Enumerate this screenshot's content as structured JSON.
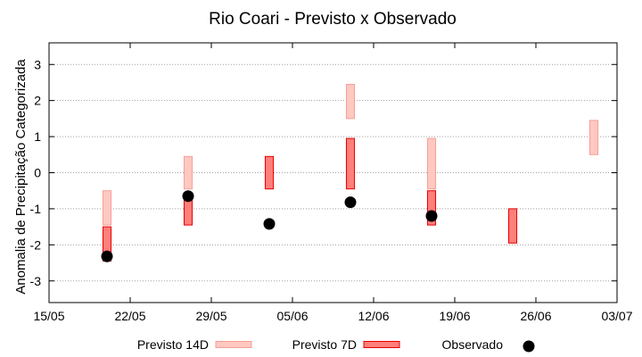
{
  "chart_data": {
    "type": "range",
    "title": "Rio Coari - Previsto x Observado",
    "ylabel": "Anomalia de Precipitação Categorizada",
    "xlabel": "",
    "ylim": [
      -3.6,
      3.6
    ],
    "yticks": [
      -3,
      -2,
      -1,
      0,
      1,
      2,
      3
    ],
    "xlim": [
      "2021-05-15",
      "2021-07-03"
    ],
    "xticks": [
      {
        "date": "2021-05-15",
        "label": "15/05"
      },
      {
        "date": "2021-05-22",
        "label": "22/05"
      },
      {
        "date": "2021-05-29",
        "label": "29/05"
      },
      {
        "date": "2021-06-05",
        "label": "05/06"
      },
      {
        "date": "2021-06-12",
        "label": "12/06"
      },
      {
        "date": "2021-06-19",
        "label": "19/06"
      },
      {
        "date": "2021-06-26",
        "label": "26/06"
      },
      {
        "date": "2021-07-03",
        "label": "03/07"
      }
    ],
    "grid": true,
    "legend_position": "bottom",
    "colors": {
      "previsto14_fill": "#ffc8c0",
      "previsto14_stroke": "#f4a098",
      "previsto7_fill": "#ff7f7a",
      "previsto7_stroke": "#e60000",
      "observado": "#000000"
    },
    "series": [
      {
        "name": "Previsto 14D",
        "kind": "range",
        "points": [
          {
            "x": "2021-05-20",
            "low": -1.45,
            "high": -0.5
          },
          {
            "x": "2021-05-27",
            "low": -0.45,
            "high": 0.45
          },
          {
            "x": "2021-06-10",
            "low": 1.5,
            "high": 2.45
          },
          {
            "x": "2021-06-17",
            "low": -0.45,
            "high": 0.95
          },
          {
            "x": "2021-07-01",
            "low": 0.5,
            "high": 1.45
          }
        ]
      },
      {
        "name": "Previsto 7D",
        "kind": "range",
        "points": [
          {
            "x": "2021-05-20",
            "low": -2.45,
            "high": -1.5
          },
          {
            "x": "2021-05-27",
            "low": -1.45,
            "high": -0.65
          },
          {
            "x": "2021-06-03",
            "low": -0.45,
            "high": 0.45
          },
          {
            "x": "2021-06-10",
            "low": -0.45,
            "high": 0.95
          },
          {
            "x": "2021-06-17",
            "low": -1.45,
            "high": -0.5
          },
          {
            "x": "2021-06-24",
            "low": -1.95,
            "high": -1.0
          }
        ]
      },
      {
        "name": "Observado",
        "kind": "point",
        "points": [
          {
            "x": "2021-05-20",
            "y": -2.32
          },
          {
            "x": "2021-05-27",
            "y": -0.65
          },
          {
            "x": "2021-06-03",
            "y": -1.42
          },
          {
            "x": "2021-06-10",
            "y": -0.82
          },
          {
            "x": "2021-06-17",
            "y": -1.2
          }
        ]
      }
    ]
  }
}
